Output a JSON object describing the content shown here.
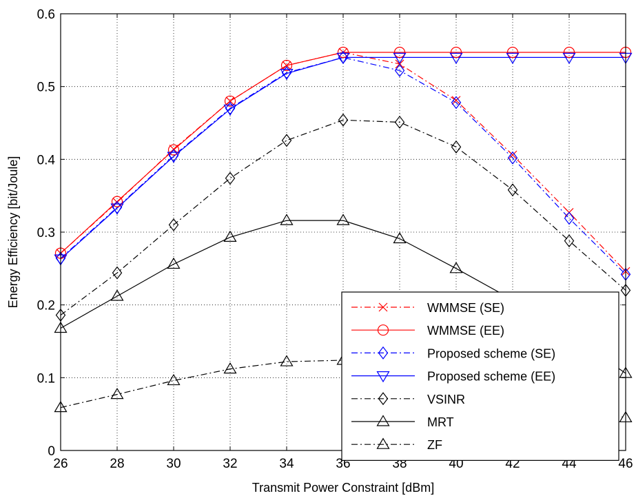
{
  "chart_data": {
    "type": "line",
    "xlabel": "Transmit Power Constraint [dBm]",
    "ylabel": "Energy Efficiency [bit/Joule]",
    "xlim": [
      26,
      46
    ],
    "ylim": [
      0,
      0.6
    ],
    "xticks": [
      "26",
      "28",
      "30",
      "32",
      "34",
      "36",
      "38",
      "40",
      "42",
      "44",
      "46"
    ],
    "yticks": [
      "0",
      "0.1",
      "0.2",
      "0.3",
      "0.4",
      "0.5",
      "0.6"
    ],
    "grid": true,
    "legend_position": "bottom-right",
    "x": [
      26,
      28,
      30,
      32,
      34,
      36,
      38,
      40,
      42,
      44,
      46
    ],
    "series": [
      {
        "name": "WMMSE (SE)",
        "color": "#ff0000",
        "dash": "dashdot",
        "marker": "x",
        "values": [
          0.271,
          0.341,
          0.414,
          0.48,
          0.529,
          0.547,
          0.531,
          0.481,
          0.406,
          0.327,
          0.246
        ]
      },
      {
        "name": "WMMSE (EE)",
        "color": "#ff0000",
        "dash": "solid",
        "marker": "circle",
        "values": [
          0.271,
          0.342,
          0.413,
          0.48,
          0.529,
          0.547,
          0.547,
          0.547,
          0.547,
          0.547,
          0.547
        ]
      },
      {
        "name": "Proposed scheme (SE)",
        "color": "#0000ff",
        "dash": "dashdot",
        "marker": "diamond",
        "values": [
          0.264,
          0.334,
          0.405,
          0.47,
          0.519,
          0.54,
          0.522,
          0.478,
          0.402,
          0.319,
          0.242
        ]
      },
      {
        "name": "Proposed scheme (EE)",
        "color": "#0000ff",
        "dash": "solid",
        "marker": "triangle-down",
        "values": [
          0.263,
          0.333,
          0.404,
          0.469,
          0.518,
          0.54,
          0.54,
          0.54,
          0.54,
          0.54,
          0.54
        ]
      },
      {
        "name": "VSINR",
        "color": "#000000",
        "dash": "dashdot",
        "marker": "diamond",
        "values": [
          0.186,
          0.244,
          0.31,
          0.374,
          0.426,
          0.454,
          0.451,
          0.417,
          0.358,
          0.288,
          0.22
        ]
      },
      {
        "name": "MRT",
        "color": "#000000",
        "dash": "solid",
        "marker": "triangle-up",
        "values": [
          0.168,
          0.212,
          0.256,
          0.293,
          0.316,
          0.316,
          0.291,
          0.25,
          0.207,
          0.16,
          0.106
        ]
      },
      {
        "name": "ZF",
        "color": "#000000",
        "dash": "dashdot",
        "marker": "triangle-up",
        "values": [
          0.059,
          0.077,
          0.096,
          0.112,
          0.122,
          0.124,
          0.115,
          0.098,
          0.081,
          0.064,
          0.045
        ]
      }
    ]
  }
}
